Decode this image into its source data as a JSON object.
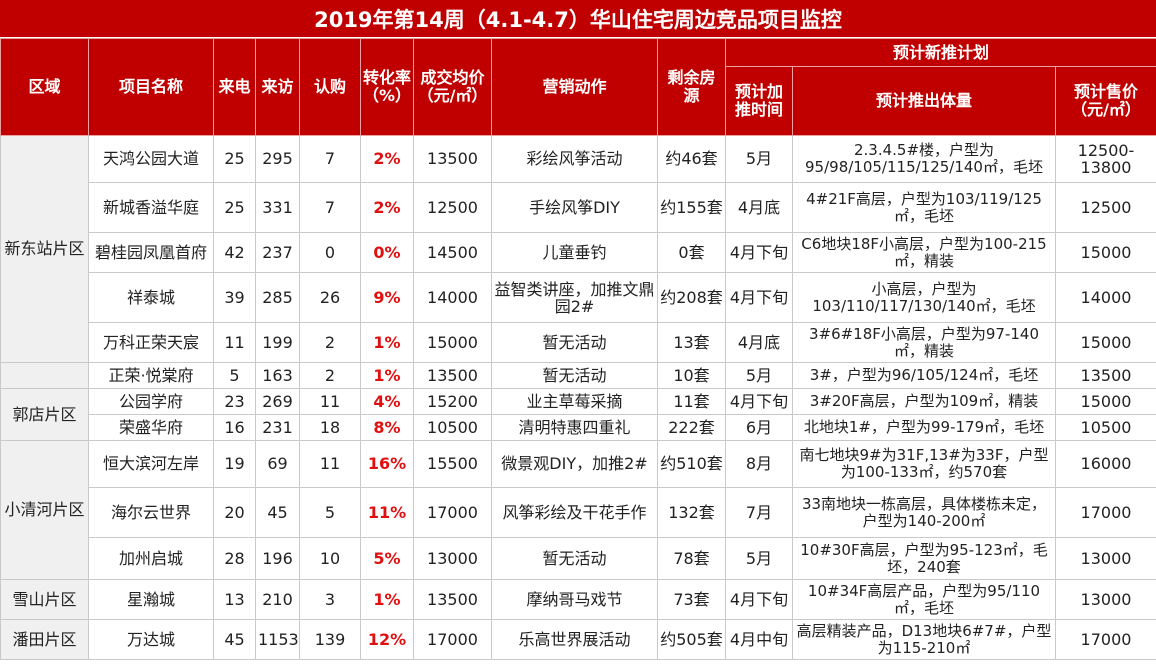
{
  "title": "2019年第14周（4.1-4.7）华山住宅周边竞品项目监控",
  "headers": {
    "region": "区域",
    "project": "项目名称",
    "calls": "来电",
    "visits": "来访",
    "subscribe": "认购",
    "rate": "转化率（%）",
    "avg_price": "成交均价（元/㎡）",
    "marketing": "营销动作",
    "remaining": "剩余房源",
    "plan_group": "预计新推计划",
    "plan_time": "预计加推时间",
    "plan_volume": "预计推出体量",
    "plan_price": "预计售价（元/㎡）"
  },
  "regions": {
    "xindongzhan": "新东站片区",
    "guodian": "郭店片区",
    "xiaoqinghe": "小清河片区",
    "xueshan": "雪山片区",
    "pantian": "潘田片区"
  },
  "rows": [
    {
      "project": "天鸿公园大道",
      "calls": "25",
      "visits": "295",
      "subscribe": "7",
      "rate": "2%",
      "avg_price": "13500",
      "marketing": "彩绘风筝活动",
      "remaining": "约46套",
      "plan_time": "5月",
      "plan_volume": "2.3.4.5#楼，户型为95/98/105/115/125/140㎡，毛坯",
      "plan_price": "12500-13800"
    },
    {
      "project": "新城香溢华庭",
      "calls": "25",
      "visits": "331",
      "subscribe": "7",
      "rate": "2%",
      "avg_price": "12500",
      "marketing": "手绘风筝DIY",
      "remaining": "约155套",
      "plan_time": "4月底",
      "plan_volume": "4#21F高层，户型为103/119/125㎡，毛坯",
      "plan_price": "12500"
    },
    {
      "project": "碧桂园凤凰首府",
      "calls": "42",
      "visits": "237",
      "subscribe": "0",
      "rate": "0%",
      "avg_price": "14500",
      "marketing": "儿童垂钓",
      "remaining": "0套",
      "plan_time": "4月下旬",
      "plan_volume": "C6地块18F小高层，户型为100-215㎡，精装",
      "plan_price": "15000"
    },
    {
      "project": "祥泰城",
      "calls": "39",
      "visits": "285",
      "subscribe": "26",
      "rate": "9%",
      "avg_price": "14000",
      "marketing": "益智类讲座，加推文鼎园2#",
      "remaining": "约208套",
      "plan_time": "4月下旬",
      "plan_volume": "小高层，户型为103/110/117/130/140㎡，毛坯",
      "plan_price": "14000"
    },
    {
      "project": "万科正荣天宸",
      "calls": "11",
      "visits": "199",
      "subscribe": "2",
      "rate": "1%",
      "avg_price": "15000",
      "marketing": "暂无活动",
      "remaining": "13套",
      "plan_time": "4月底",
      "plan_volume": "3#6#18F小高层，户型为97-140㎡，精装",
      "plan_price": "15000"
    },
    {
      "project": "正荣·悦棠府",
      "calls": "5",
      "visits": "163",
      "subscribe": "2",
      "rate": "1%",
      "avg_price": "13500",
      "marketing": "暂无活动",
      "remaining": "10套",
      "plan_time": "5月",
      "plan_volume": "3#，户型为96/105/124㎡，毛坯",
      "plan_price": "13500"
    },
    {
      "project": "公园学府",
      "calls": "23",
      "visits": "269",
      "subscribe": "11",
      "rate": "4%",
      "avg_price": "15200",
      "marketing": "业主草莓采摘",
      "remaining": "11套",
      "plan_time": "4月下旬",
      "plan_volume": "3#20F高层，户型为109㎡，精装",
      "plan_price": "15000"
    },
    {
      "project": "荣盛华府",
      "calls": "16",
      "visits": "231",
      "subscribe": "18",
      "rate": "8%",
      "avg_price": "10500",
      "marketing": "清明特惠四重礼",
      "remaining": "222套",
      "plan_time": "6月",
      "plan_volume": "北地块1#，户型为99-179㎡，毛坯",
      "plan_price": "10500"
    },
    {
      "project": "恒大滨河左岸",
      "calls": "19",
      "visits": "69",
      "subscribe": "11",
      "rate": "16%",
      "avg_price": "15500",
      "marketing": "微景观DIY，加推2#",
      "remaining": "约510套",
      "plan_time": "8月",
      "plan_volume": "南七地块9#为31F,13#为33F，户型为100-133㎡，约570套",
      "plan_price": "16000"
    },
    {
      "project": "海尔云世界",
      "calls": "20",
      "visits": "45",
      "subscribe": "5",
      "rate": "11%",
      "avg_price": "17000",
      "marketing": "风筝彩绘及干花手作",
      "remaining": "132套",
      "plan_time": "7月",
      "plan_volume": "33南地块一栋高层，具体楼栋未定，户型为140-200㎡",
      "plan_price": "17000"
    },
    {
      "project": "加州启城",
      "calls": "28",
      "visits": "196",
      "subscribe": "10",
      "rate": "5%",
      "avg_price": "13000",
      "marketing": "暂无活动",
      "remaining": "78套",
      "plan_time": "5月",
      "plan_volume": "10#30F高层，户型为95-123㎡，毛坯，240套",
      "plan_price": "13000"
    },
    {
      "project": "星瀚城",
      "calls": "13",
      "visits": "210",
      "subscribe": "3",
      "rate": "1%",
      "avg_price": "13500",
      "marketing": "摩纳哥马戏节",
      "remaining": "73套",
      "plan_time": "4月下旬",
      "plan_volume": "10#34F高层产品，户型为95/110㎡，毛坯",
      "plan_price": "13000"
    },
    {
      "project": "万达城",
      "calls": "45",
      "visits": "1153",
      "subscribe": "139",
      "rate": "12%",
      "avg_price": "17000",
      "marketing": "乐高世界展活动",
      "remaining": "约505套",
      "plan_time": "4月中旬",
      "plan_volume": "高层精装产品，D13地块6#7#，户型为115-210㎡",
      "plan_price": "17000"
    }
  ],
  "colors": {
    "header_bg": "#c00000",
    "rate_text": "#e01010",
    "region_bg": "#f0f0f0"
  }
}
